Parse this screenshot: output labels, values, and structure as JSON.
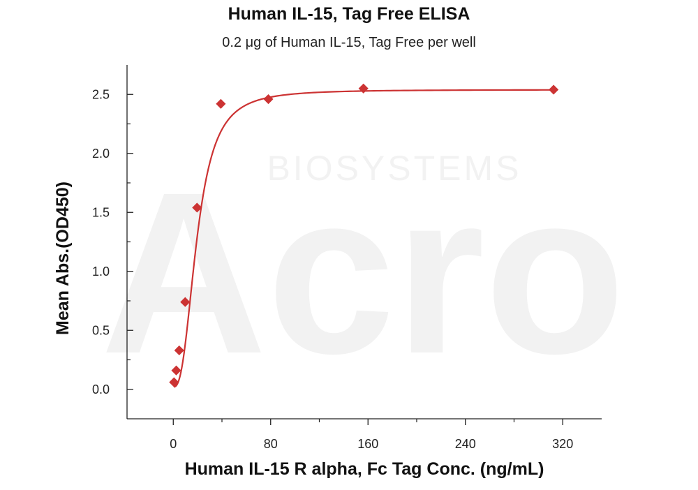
{
  "chart_data": {
    "type": "scatter",
    "title": "Human IL-15, Tag Free ELISA",
    "subtitle": "0.2 μg of Human IL-15, Tag Free per well",
    "xlabel": "Human IL-15 R alpha, Fc Tag Conc. (ng/mL)",
    "ylabel": "Mean Abs.(OD450)",
    "xlim": [
      -38,
      352
    ],
    "ylim": [
      -0.25,
      2.75
    ],
    "xticks": [
      0,
      80,
      160,
      240,
      320
    ],
    "yticks": [
      0.0,
      0.5,
      1.0,
      1.5,
      2.0,
      2.5
    ],
    "xtick_labels": [
      "0",
      "80",
      "160",
      "240",
      "320"
    ],
    "ytick_labels": [
      "0.0",
      "0.5",
      "1.0",
      "1.5",
      "2.0",
      "2.5"
    ],
    "grid": false,
    "legend": "none",
    "marker": "diamond",
    "color": "#cc3333",
    "series": [
      {
        "x": [
          0.61,
          2.44,
          4.88,
          9.77,
          19.53,
          39.06,
          78.13,
          156.25,
          312.5
        ],
        "y": [
          0.06,
          0.16,
          0.33,
          0.74,
          1.54,
          2.42,
          2.46,
          2.55,
          2.54
        ]
      }
    ],
    "fit_curve": {
      "type": "4PL",
      "bottom": 0.02,
      "top": 2.54,
      "ec50": 19.5,
      "hill": 2.6
    }
  },
  "watermark": {
    "logo_text": "Acro",
    "sub_text": "BIOSYSTEMS"
  }
}
